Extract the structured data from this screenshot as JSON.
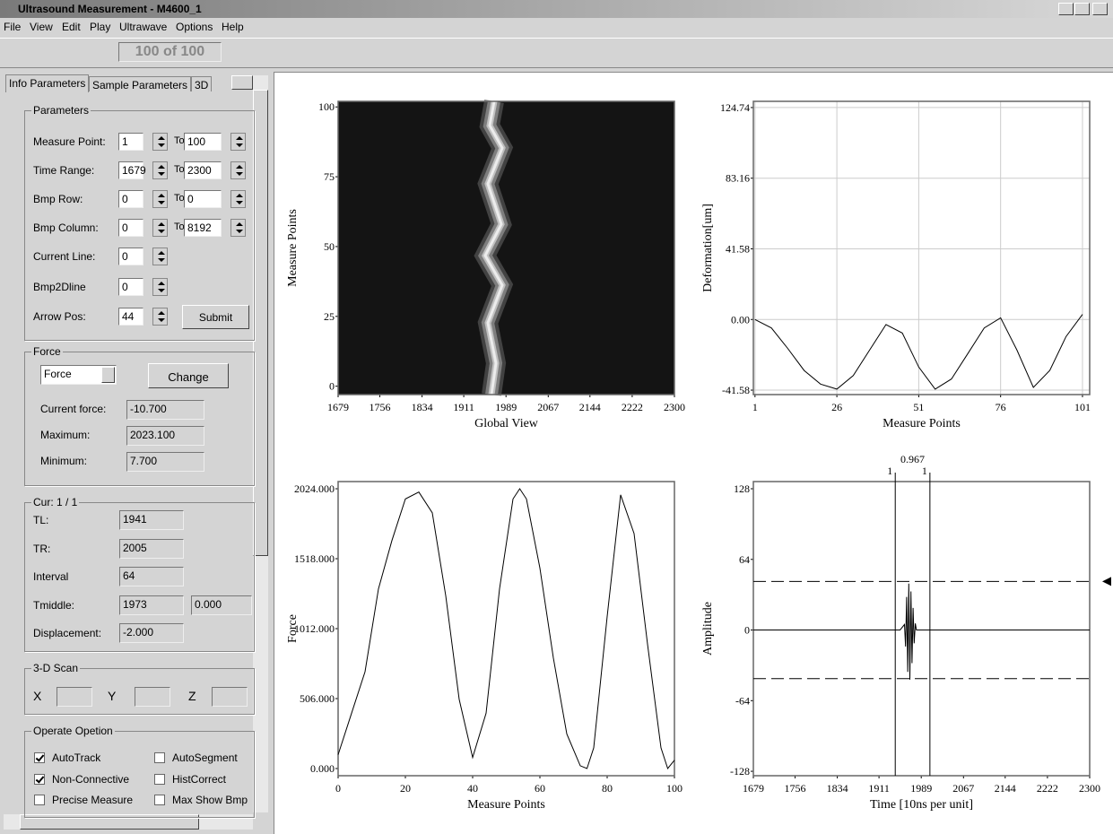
{
  "window": {
    "title": "Ultrasound Measurement - M4600_1"
  },
  "menu": [
    "File",
    "View",
    "Edit",
    "Play",
    "Ultrawave",
    "Options",
    "Help"
  ],
  "toolbar": {
    "frame": "100 of 100"
  },
  "tabs": [
    "Info Parameters",
    "Sample Parameters",
    "3D"
  ],
  "parameters": {
    "title": "Parameters",
    "to_label": "To:",
    "rows": [
      {
        "label": "Measure Point:",
        "from": "1",
        "to": "100"
      },
      {
        "label": "Time Range:",
        "from": "1679",
        "to": "2300"
      },
      {
        "label": "Bmp Row:",
        "from": "0",
        "to": "0"
      },
      {
        "label": "Bmp Column:",
        "from": "0",
        "to": "8192"
      },
      {
        "label": "Current Line:",
        "from": "0"
      },
      {
        "label": "Bmp2Dline",
        "from": "0"
      },
      {
        "label": "Arrow Pos:",
        "from": "44"
      }
    ],
    "submit": "Submit"
  },
  "force": {
    "title": "Force",
    "select": "Force",
    "button": "Change",
    "fields": [
      {
        "label": "Current force:",
        "value": "-10.700"
      },
      {
        "label": "Maximum:",
        "value": "2023.100"
      },
      {
        "label": "Minimum:",
        "value": "7.700"
      }
    ]
  },
  "cursor": {
    "title": "Cur: 1 / 1",
    "fields": [
      {
        "label": "TL:",
        "value": "1941"
      },
      {
        "label": "TR:",
        "value": "2005"
      },
      {
        "label": "Interval",
        "value": "64"
      },
      {
        "label": "Tmiddle:",
        "value": "1973",
        "extra": "0.000"
      },
      {
        "label": "Displacement:",
        "value": "-2.000"
      }
    ]
  },
  "scan": {
    "title": "3-D Scan",
    "axes": [
      "X",
      "Y",
      "Z"
    ]
  },
  "options": {
    "title": "Operate Opetion",
    "items": [
      {
        "label": "AutoTrack",
        "checked": true
      },
      {
        "label": "AutoSegment",
        "checked": false
      },
      {
        "label": "Non-Connective",
        "checked": true
      },
      {
        "label": "HistCorrect",
        "checked": false
      },
      {
        "label": "Precise Measure",
        "checked": false
      },
      {
        "label": "Max Show Bmp",
        "checked": false
      }
    ]
  },
  "charts": [
    {
      "type": "image",
      "ylabel": "Measure Points",
      "xlabel": "Global View",
      "xlim": [
        1679,
        2300
      ],
      "xticks": [
        1679,
        1756,
        1834,
        1911,
        1989,
        2067,
        2144,
        2222,
        2300
      ],
      "ylim": [
        -3,
        102
      ],
      "yticks": [
        0,
        25,
        50,
        75,
        100
      ],
      "grid": false
    },
    {
      "type": "line",
      "ylabel": "Deformation[um]",
      "xlabel": "Measure Points",
      "xlim": [
        0.5,
        103.2
      ],
      "xticks": [
        1,
        26,
        51,
        76,
        101
      ],
      "ylim": [
        -44.2,
        128.4
      ],
      "yticks": [
        -41.58,
        {
          "value": 0,
          "label": "0.00"
        },
        41.58,
        83.16,
        124.74
      ],
      "grid": true,
      "x": [
        1,
        6,
        11,
        16,
        21,
        26,
        31,
        36,
        41,
        46,
        51,
        56,
        61,
        66,
        71,
        76,
        81,
        86,
        91,
        96,
        101
      ],
      "y": [
        0,
        -5,
        -17,
        -30,
        -38,
        -41,
        -33,
        -18,
        -3,
        -8,
        -28,
        -41,
        -35,
        -20,
        -5,
        1,
        -18,
        -40,
        -30,
        -10,
        3
      ]
    },
    {
      "type": "line",
      "ylabel": "Force",
      "xlabel": "Measure Points",
      "xlim": [
        0,
        100
      ],
      "xticks": [
        0,
        20,
        40,
        60,
        80,
        100
      ],
      "ylim": [
        -52,
        2076
      ],
      "yticks": [
        {
          "value": 0,
          "label": "0.000"
        },
        {
          "value": 506,
          "label": "506.000"
        },
        {
          "value": 1012,
          "label": "1012.000"
        },
        {
          "value": 1518,
          "label": "1518.000"
        },
        {
          "value": 2024,
          "label": "2024.000"
        }
      ],
      "grid": false,
      "x": [
        0,
        4,
        8,
        12,
        16,
        20,
        24,
        28,
        32,
        36,
        40,
        44,
        48,
        52,
        54,
        56,
        60,
        64,
        68,
        72,
        74,
        76,
        80,
        84,
        88,
        92,
        96,
        98,
        100
      ],
      "y": [
        100,
        400,
        700,
        1300,
        1650,
        1950,
        2000,
        1850,
        1250,
        500,
        80,
        400,
        1300,
        1950,
        2024,
        1950,
        1450,
        800,
        250,
        20,
        0,
        150,
        1100,
        1980,
        1700,
        900,
        150,
        0,
        60
      ]
    },
    {
      "type": "line",
      "ylabel": "Amplitude",
      "xlabel": "Time [10ns per unit]",
      "xlim": [
        1679,
        2300
      ],
      "xticks": [
        1679,
        1756,
        1834,
        1911,
        1989,
        2067,
        2144,
        2222,
        2300
      ],
      "ylim": [
        -132,
        134.5
      ],
      "yticks": [
        -128,
        -64,
        0,
        64,
        128
      ],
      "grid": false,
      "x": [
        1679,
        1950,
        1958,
        1960,
        1962,
        1964,
        1966,
        1968,
        1970,
        1972,
        1974,
        1976,
        1978,
        1980,
        1985,
        2300
      ],
      "y": [
        0,
        0,
        5,
        -15,
        30,
        -38,
        42,
        -45,
        35,
        -30,
        20,
        -12,
        6,
        0,
        0,
        0
      ],
      "thresholds": [
        44,
        -44
      ],
      "cursors": [
        {
          "x": 1941,
          "label": "1"
        },
        {
          "x": 2005,
          "label": "1"
        }
      ],
      "ratio": "0.967"
    }
  ]
}
